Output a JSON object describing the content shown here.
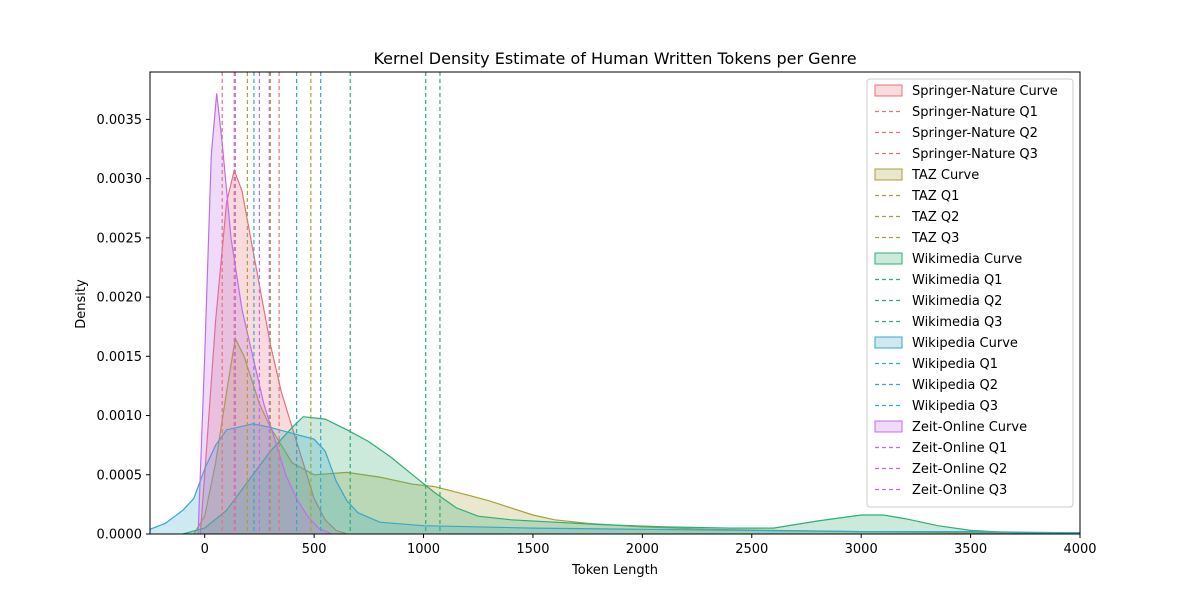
{
  "chart_data": {
    "type": "area",
    "title": "Kernel Density Estimate of Human Written Tokens per Genre",
    "xlabel": "Token Length",
    "ylabel": "Density",
    "xlim": [
      -250,
      4000
    ],
    "ylim": [
      0,
      0.0039
    ],
    "x_ticks": [
      0,
      500,
      1000,
      1500,
      2000,
      2500,
      3000,
      3500,
      4000
    ],
    "y_ticks": [
      0.0,
      0.0005,
      0.001,
      0.0015,
      0.002,
      0.0025,
      0.003,
      0.0035
    ],
    "y_tick_labels": [
      "0.0000",
      "0.0005",
      "0.0010",
      "0.0015",
      "0.0020",
      "0.0025",
      "0.0030",
      "0.0035"
    ],
    "grid": false,
    "legend_position": "top-right",
    "series": [
      {
        "name": "Springer-Nature",
        "curve_label": "Springer-Nature Curve",
        "color": "#e8707a",
        "q_labels": [
          "Springer-Nature Q1",
          "Springer-Nature Q2",
          "Springer-Nature Q3"
        ],
        "quartiles": [
          80,
          135,
          340
        ],
        "points": [
          [
            -20,
            0
          ],
          [
            0,
            0.0005
          ],
          [
            50,
            0.0018
          ],
          [
            100,
            0.0028
          ],
          [
            135,
            0.00307
          ],
          [
            170,
            0.0029
          ],
          [
            200,
            0.0026
          ],
          [
            250,
            0.0021
          ],
          [
            300,
            0.0016
          ],
          [
            350,
            0.0012
          ],
          [
            400,
            0.0009
          ],
          [
            450,
            0.0006
          ],
          [
            500,
            0.0003
          ],
          [
            550,
            0.00012
          ],
          [
            600,
            3e-05
          ],
          [
            650,
            0
          ]
        ]
      },
      {
        "name": "TAZ",
        "curve_label": "TAZ Curve",
        "color": "#a7a138",
        "q_labels": [
          "TAZ Q1",
          "TAZ Q2",
          "TAZ Q3"
        ],
        "quartiles": [
          195,
          300,
          485
        ],
        "points": [
          [
            -50,
            0
          ],
          [
            0,
            0.00015
          ],
          [
            50,
            0.0006
          ],
          [
            100,
            0.0012
          ],
          [
            140,
            0.00165
          ],
          [
            180,
            0.0015
          ],
          [
            250,
            0.0011
          ],
          [
            300,
            0.0009
          ],
          [
            400,
            0.0006
          ],
          [
            500,
            0.0005
          ],
          [
            650,
            0.00052
          ],
          [
            800,
            0.00048
          ],
          [
            950,
            0.00042
          ],
          [
            1050,
            0.0004
          ],
          [
            1200,
            0.00033
          ],
          [
            1300,
            0.00028
          ],
          [
            1400,
            0.00022
          ],
          [
            1500,
            0.00016
          ],
          [
            1600,
            0.00012
          ],
          [
            1750,
            9e-05
          ],
          [
            2000,
            6e-05
          ],
          [
            2300,
            4e-05
          ],
          [
            2600,
            3e-05
          ],
          [
            3000,
            2e-05
          ],
          [
            3500,
            1e-05
          ],
          [
            4000,
            1e-05
          ]
        ]
      },
      {
        "name": "Wikimedia",
        "curve_label": "Wikimedia Curve",
        "color": "#2fad74",
        "q_labels": [
          "Wikimedia Q1",
          "Wikimedia Q2",
          "Wikimedia Q3"
        ],
        "quartiles": [
          665,
          1010,
          1075
        ],
        "points": [
          [
            -100,
            0
          ],
          [
            0,
            5e-05
          ],
          [
            100,
            0.0002
          ],
          [
            200,
            0.00045
          ],
          [
            300,
            0.0007
          ],
          [
            400,
            0.0009
          ],
          [
            450,
            0.00099
          ],
          [
            550,
            0.00097
          ],
          [
            650,
            0.00088
          ],
          [
            750,
            0.00078
          ],
          [
            850,
            0.00065
          ],
          [
            950,
            0.0005
          ],
          [
            1050,
            0.00035
          ],
          [
            1150,
            0.00022
          ],
          [
            1250,
            0.00015
          ],
          [
            1400,
            0.00012
          ],
          [
            1600,
            0.0001
          ],
          [
            1800,
            8e-05
          ],
          [
            2100,
            6e-05
          ],
          [
            2400,
            5e-05
          ],
          [
            2600,
            5e-05
          ],
          [
            2800,
            0.00011
          ],
          [
            3000,
            0.00016
          ],
          [
            3100,
            0.00016
          ],
          [
            3200,
            0.00013
          ],
          [
            3350,
            7e-05
          ],
          [
            3500,
            3e-05
          ],
          [
            3700,
            1e-05
          ],
          [
            4000,
            1e-05
          ]
        ]
      },
      {
        "name": "Wikipedia",
        "curve_label": "Wikipedia Curve",
        "color": "#3aa6c7",
        "q_labels": [
          "Wikipedia Q1",
          "Wikipedia Q2",
          "Wikipedia Q3"
        ],
        "quartiles": [
          225,
          420,
          530
        ],
        "points": [
          [
            -250,
            4e-05
          ],
          [
            -180,
            9e-05
          ],
          [
            -100,
            0.0002
          ],
          [
            -50,
            0.0003
          ],
          [
            0,
            0.00055
          ],
          [
            50,
            0.00075
          ],
          [
            100,
            0.00088
          ],
          [
            150,
            0.0009
          ],
          [
            220,
            0.00093
          ],
          [
            300,
            0.0009
          ],
          [
            400,
            0.00085
          ],
          [
            500,
            0.0008
          ],
          [
            550,
            0.0007
          ],
          [
            600,
            0.00045
          ],
          [
            650,
            0.00028
          ],
          [
            700,
            0.00018
          ],
          [
            800,
            0.0001
          ],
          [
            1000,
            7e-05
          ],
          [
            1500,
            5e-05
          ],
          [
            2000,
            4e-05
          ],
          [
            2500,
            3e-05
          ],
          [
            3000,
            2e-05
          ],
          [
            3500,
            2e-05
          ],
          [
            4000,
            1e-05
          ]
        ]
      },
      {
        "name": "Zeit-Online",
        "curve_label": "Zeit-Online Curve",
        "color": "#c06ee8",
        "q_labels": [
          "Zeit-Online Q1",
          "Zeit-Online Q2",
          "Zeit-Online Q3"
        ],
        "quartiles": [
          140,
          250,
          295
        ],
        "points": [
          [
            -30,
            0
          ],
          [
            0,
            0.0015
          ],
          [
            30,
            0.0032
          ],
          [
            55,
            0.00372
          ],
          [
            80,
            0.0033
          ],
          [
            120,
            0.0025
          ],
          [
            170,
            0.0019
          ],
          [
            220,
            0.0015
          ],
          [
            270,
            0.0011
          ],
          [
            320,
            0.0008
          ],
          [
            370,
            0.0005
          ],
          [
            420,
            0.0003
          ],
          [
            470,
            0.00015
          ],
          [
            520,
            5e-05
          ],
          [
            580,
            0
          ]
        ]
      }
    ]
  }
}
